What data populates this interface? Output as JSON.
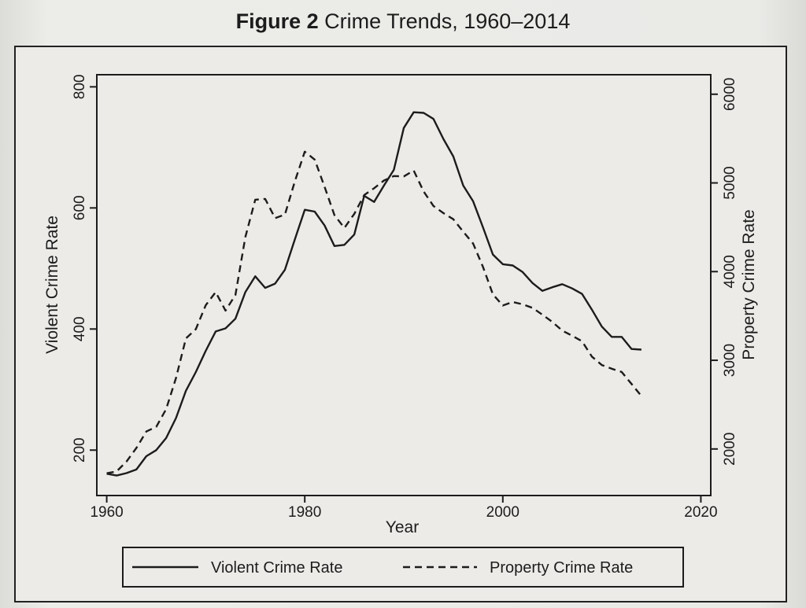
{
  "figure": {
    "label": "Figure 2",
    "title": "Crime Trends, 1960–2014"
  },
  "chart_data": {
    "type": "line",
    "title": "Crime Trends, 1960–2014",
    "xlabel": "Year",
    "ylabel_left": "Violent Crime Rate",
    "ylabel_right": "Property Crime Rate",
    "xlim": [
      1959,
      2021
    ],
    "ylim_left": [
      125,
      820
    ],
    "ylim_right": [
      1475,
      6220
    ],
    "x_ticks": [
      1960,
      1980,
      2000,
      2020
    ],
    "y_ticks_left": [
      200,
      400,
      600,
      800
    ],
    "y_ticks_right": [
      2000,
      3000,
      4000,
      5000,
      6000
    ],
    "grid": false,
    "legend_position": "bottom",
    "series": [
      {
        "name": "Violent Crime Rate",
        "axis": "left",
        "style": "solid",
        "x": [
          1960,
          1961,
          1962,
          1963,
          1964,
          1965,
          1966,
          1967,
          1968,
          1969,
          1970,
          1971,
          1972,
          1973,
          1974,
          1975,
          1976,
          1977,
          1978,
          1979,
          1980,
          1981,
          1982,
          1983,
          1984,
          1985,
          1986,
          1987,
          1988,
          1989,
          1990,
          1991,
          1992,
          1993,
          1994,
          1995,
          1996,
          1997,
          1998,
          1999,
          2000,
          2001,
          2002,
          2003,
          2004,
          2005,
          2006,
          2007,
          2008,
          2009,
          2010,
          2011,
          2012,
          2013,
          2014
        ],
        "values": [
          161,
          158,
          162,
          168,
          190,
          200,
          220,
          253,
          298,
          329,
          364,
          396,
          401,
          417,
          461,
          487,
          468,
          475,
          498,
          548,
          597,
          594,
          571,
          537,
          539,
          556,
          620,
          610,
          637,
          663,
          732,
          758,
          757,
          747,
          714,
          685,
          637,
          611,
          568,
          523,
          507,
          505,
          494,
          476,
          463,
          469,
          474,
          467,
          458,
          432,
          404,
          387,
          387,
          367,
          366
        ]
      },
      {
        "name": "Property Crime Rate",
        "axis": "left",
        "style": "dashed",
        "x": [
          1960,
          1961,
          1962,
          1963,
          1964,
          1965,
          1966,
          1967,
          1968,
          1969,
          1970,
          1971,
          1972,
          1973,
          1974,
          1975,
          1976,
          1977,
          1978,
          1979,
          1980,
          1981,
          1982,
          1983,
          1984,
          1985,
          1986,
          1987,
          1988,
          1989,
          1990,
          1991,
          1992,
          1993,
          1994,
          1995,
          1996,
          1997,
          1998,
          1999,
          2000,
          2001,
          2002,
          2003,
          2004,
          2005,
          2006,
          2007,
          2008,
          2009,
          2010,
          2011,
          2012,
          2013,
          2014
        ],
        "values": [
          1726,
          1747,
          1858,
          2012,
          2197,
          2249,
          2450,
          2800,
          3247,
          3351,
          3621,
          3769,
          3560,
          3737,
          4389,
          4811,
          4820,
          4602,
          4643,
          5017,
          5353,
          5263,
          4955,
          4637,
          4492,
          4651,
          4863,
          4940,
          5027,
          5078,
          5073,
          5140,
          4904,
          4740,
          4660,
          4591,
          4451,
          4316,
          4053,
          3744,
          3618,
          3658,
          3631,
          3591,
          3514,
          3432,
          3335,
          3276,
          3214,
          3041,
          2946,
          2905,
          2868,
          2733,
          2596
        ],
        "axis_actual": "right"
      }
    ]
  },
  "legend": {
    "items": [
      {
        "label": "Violent Crime Rate",
        "style": "solid"
      },
      {
        "label": "Property Crime Rate",
        "style": "dashed"
      }
    ]
  },
  "colors": {
    "line": "#1c1c1c",
    "background": "#ecebe8"
  }
}
